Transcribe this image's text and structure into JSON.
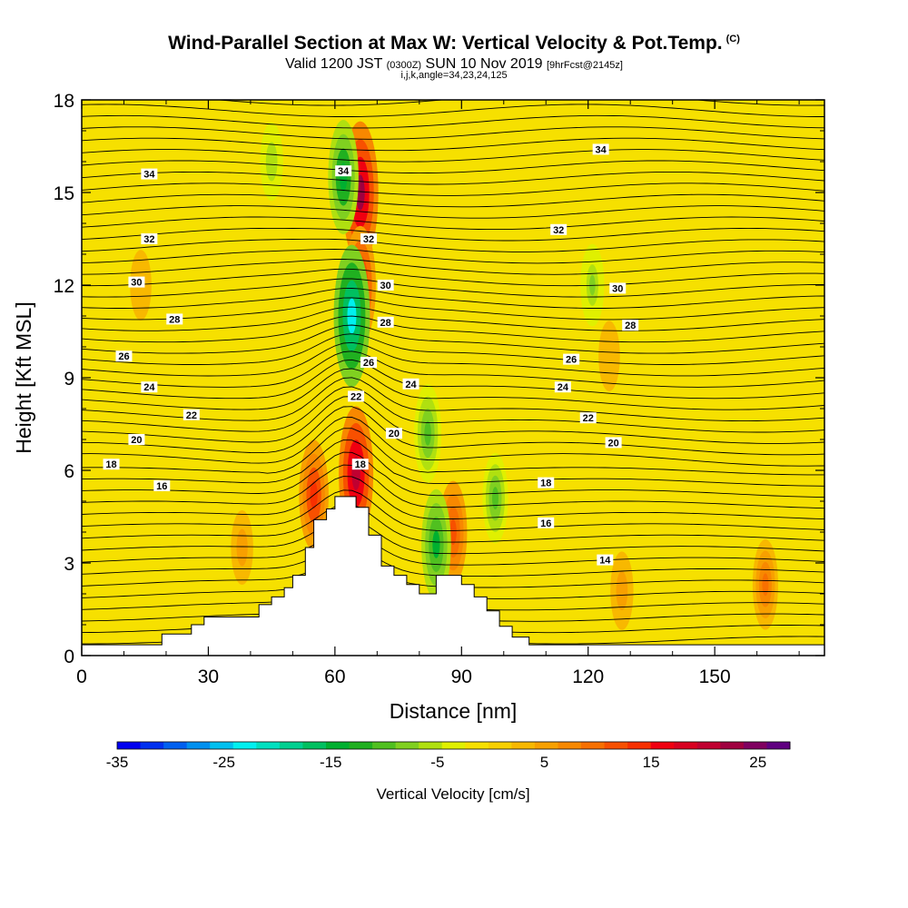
{
  "title": {
    "main": "Wind-Parallel Section at Max W: Vertical Velocity & Pot.Temp.",
    "copyright": "(C)",
    "valid_a": "Valid 1200 JST",
    "valid_utc": "(0300Z)",
    "valid_b": "SUN 10 Nov 2019",
    "forecast": "[9hrFcst@2145z]",
    "params": "i,j,k,angle=34,23,24,125"
  },
  "colors": {
    "background_field": "#f6e000",
    "terrain": "#ffffff",
    "contour": "#000000"
  },
  "chart_data": {
    "type": "heatmap",
    "xlabel": "Distance [nm]",
    "ylabel": "Height [Kft MSL]",
    "xlim": [
      0,
      176
    ],
    "ylim": [
      0,
      18
    ],
    "x_ticks": [
      0,
      30,
      60,
      90,
      120,
      150
    ],
    "y_ticks": [
      0,
      3,
      6,
      9,
      12,
      15,
      18
    ],
    "colorbar": {
      "label": "Vertical Velocity [cm/s]",
      "range": [
        -35,
        28
      ],
      "tick_values": [
        -35,
        -25,
        -15,
        -5,
        5,
        15,
        25
      ],
      "colors": [
        "#0000f0",
        "#0030f0",
        "#0060f0",
        "#0090f0",
        "#00c0f0",
        "#00f0f0",
        "#00e0c0",
        "#00d090",
        "#00c060",
        "#00b030",
        "#20b020",
        "#50c020",
        "#80d020",
        "#b0e010",
        "#e0f000",
        "#f6e000",
        "#f8d000",
        "#f8b800",
        "#f8a000",
        "#f88800",
        "#f87000",
        "#f85000",
        "#f83000",
        "#f00010",
        "#d80020",
        "#c00030",
        "#a00040",
        "#800060",
        "#600080"
      ]
    },
    "velocity_features": [
      {
        "x": 66,
        "y": 15,
        "value": 22
      },
      {
        "x": 66,
        "y": 12,
        "value": 16
      },
      {
        "x": 65,
        "y": 5.9,
        "value": 20
      },
      {
        "x": 55,
        "y": 5.2,
        "value": 14
      },
      {
        "x": 88,
        "y": 4,
        "value": 12
      },
      {
        "x": 162,
        "y": 2.3,
        "value": 9
      },
      {
        "x": 128,
        "y": 2.1,
        "value": 6
      },
      {
        "x": 38,
        "y": 3.5,
        "value": 5
      },
      {
        "x": 14,
        "y": 12,
        "value": 4
      },
      {
        "x": 125,
        "y": 9.7,
        "value": 4
      },
      {
        "x": 62,
        "y": 15.5,
        "value": -15
      },
      {
        "x": 64,
        "y": 11,
        "value": -22
      },
      {
        "x": 84,
        "y": 3.6,
        "value": -14
      },
      {
        "x": 82,
        "y": 7.2,
        "value": -11
      },
      {
        "x": 98,
        "y": 5.1,
        "value": -9
      },
      {
        "x": 121,
        "y": 12,
        "value": -7
      },
      {
        "x": 45,
        "y": 16,
        "value": -6
      }
    ],
    "isentropes": [
      {
        "theta": 14,
        "label_x": 124,
        "label_y": 3.1
      },
      {
        "theta": 16,
        "label_x": 19,
        "label_y": 5.5
      },
      {
        "theta": 16,
        "label_x": 110,
        "label_y": 4.3
      },
      {
        "theta": 18,
        "label_x": 7,
        "label_y": 6.2
      },
      {
        "theta": 18,
        "label_x": 66,
        "label_y": 6.2
      },
      {
        "theta": 18,
        "label_x": 110,
        "label_y": 5.6
      },
      {
        "theta": 20,
        "label_x": 13,
        "label_y": 7.0
      },
      {
        "theta": 20,
        "label_x": 74,
        "label_y": 7.2
      },
      {
        "theta": 20,
        "label_x": 126,
        "label_y": 6.9
      },
      {
        "theta": 22,
        "label_x": 26,
        "label_y": 7.8
      },
      {
        "theta": 22,
        "label_x": 65,
        "label_y": 8.4
      },
      {
        "theta": 22,
        "label_x": 120,
        "label_y": 7.7
      },
      {
        "theta": 24,
        "label_x": 16,
        "label_y": 8.7
      },
      {
        "theta": 24,
        "label_x": 78,
        "label_y": 8.8
      },
      {
        "theta": 24,
        "label_x": 114,
        "label_y": 8.7
      },
      {
        "theta": 26,
        "label_x": 10,
        "label_y": 9.7
      },
      {
        "theta": 26,
        "label_x": 68,
        "label_y": 9.5
      },
      {
        "theta": 26,
        "label_x": 116,
        "label_y": 9.6
      },
      {
        "theta": 28,
        "label_x": 22,
        "label_y": 10.9
      },
      {
        "theta": 28,
        "label_x": 72,
        "label_y": 10.8
      },
      {
        "theta": 28,
        "label_x": 130,
        "label_y": 10.7
      },
      {
        "theta": 30,
        "label_x": 13,
        "label_y": 12.1
      },
      {
        "theta": 30,
        "label_x": 72,
        "label_y": 12.0
      },
      {
        "theta": 30,
        "label_x": 127,
        "label_y": 11.9
      },
      {
        "theta": 32,
        "label_x": 16,
        "label_y": 13.5
      },
      {
        "theta": 32,
        "label_x": 68,
        "label_y": 13.5
      },
      {
        "theta": 32,
        "label_x": 113,
        "label_y": 13.8
      },
      {
        "theta": 34,
        "label_x": 16,
        "label_y": 15.6
      },
      {
        "theta": 34,
        "label_x": 62,
        "label_y": 15.7
      },
      {
        "theta": 34,
        "label_x": 123,
        "label_y": 16.4
      }
    ],
    "terrain_profile": [
      [
        0,
        0.35
      ],
      [
        19,
        0.35
      ],
      [
        19,
        0.7
      ],
      [
        26,
        0.7
      ],
      [
        26,
        1.0
      ],
      [
        29,
        1.0
      ],
      [
        29,
        1.25
      ],
      [
        42,
        1.25
      ],
      [
        42,
        1.65
      ],
      [
        45,
        1.65
      ],
      [
        45,
        1.9
      ],
      [
        48,
        1.9
      ],
      [
        48,
        2.2
      ],
      [
        50,
        2.2
      ],
      [
        50,
        2.6
      ],
      [
        53,
        2.6
      ],
      [
        53,
        3.5
      ],
      [
        55,
        3.5
      ],
      [
        55,
        4.4
      ],
      [
        58,
        4.4
      ],
      [
        58,
        4.75
      ],
      [
        60,
        4.75
      ],
      [
        60,
        5.15
      ],
      [
        65,
        5.15
      ],
      [
        65,
        4.8
      ],
      [
        68,
        4.8
      ],
      [
        68,
        3.9
      ],
      [
        71,
        3.9
      ],
      [
        71,
        2.9
      ],
      [
        74,
        2.9
      ],
      [
        74,
        2.6
      ],
      [
        77,
        2.6
      ],
      [
        77,
        2.3
      ],
      [
        80,
        2.3
      ],
      [
        80,
        2.0
      ],
      [
        84,
        2.0
      ],
      [
        84,
        2.6
      ],
      [
        90,
        2.6
      ],
      [
        90,
        2.3
      ],
      [
        93,
        2.3
      ],
      [
        93,
        1.9
      ],
      [
        96,
        1.9
      ],
      [
        96,
        1.45
      ],
      [
        99,
        1.45
      ],
      [
        99,
        0.95
      ],
      [
        102,
        0.95
      ],
      [
        102,
        0.6
      ],
      [
        106,
        0.6
      ],
      [
        106,
        0.35
      ],
      [
        176,
        0.35
      ]
    ]
  }
}
